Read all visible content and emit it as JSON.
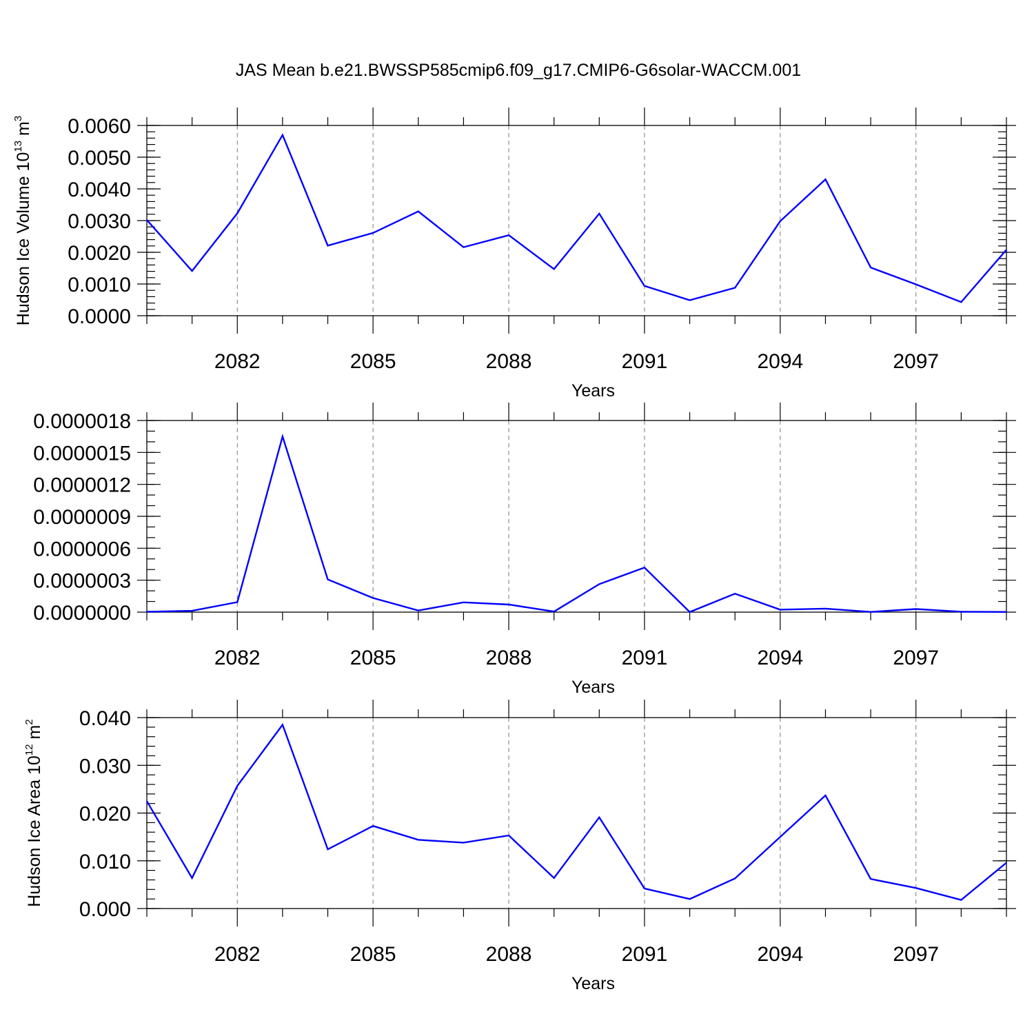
{
  "title": "JAS Mean b.e21.BWSSP585cmip6.f09_g17.CMIP6-G6solar-WACCM.001",
  "chart_data": [
    {
      "type": "line",
      "ylabel_main": "Hudson Ice Volume 10",
      "ylabel_sup": "13",
      "ylabel_unit": " m",
      "ylabel_unit_sup": "3",
      "xlabel": "Years",
      "x": [
        2080,
        2081,
        2082,
        2083,
        2084,
        2085,
        2086,
        2087,
        2088,
        2089,
        2090,
        2091,
        2092,
        2093,
        2094,
        2095,
        2096,
        2097,
        2098,
        2099
      ],
      "xlim": [
        2080,
        2099
      ],
      "xticks": [
        2082,
        2085,
        2088,
        2091,
        2094,
        2097
      ],
      "xtick_labels": [
        "2082",
        "2085",
        "2088",
        "2091",
        "2094",
        "2097"
      ],
      "ylim": [
        0,
        0.006
      ],
      "yticks": [
        0,
        0.001,
        0.002,
        0.003,
        0.004,
        0.005,
        0.006
      ],
      "ytick_labels": [
        "0.0000",
        "0.0010",
        "0.0020",
        "0.0030",
        "0.0040",
        "0.0050",
        "0.0060"
      ],
      "yminor_step": 0.0002,
      "series": [
        {
          "color": "#0000ff",
          "values": [
            0.00302,
            0.00141,
            0.00323,
            0.0057,
            0.00221,
            0.00261,
            0.00329,
            0.00216,
            0.00254,
            0.00147,
            0.00322,
            0.00094,
            0.00049,
            0.00088,
            0.00298,
            0.0043,
            0.00152,
            0.00099,
            0.00043,
            0.00208
          ]
        }
      ]
    },
    {
      "type": "line",
      "ylabel_main": "",
      "ylabel_sup": "",
      "ylabel_unit": "",
      "ylabel_unit_sup": "",
      "xlabel": "Years",
      "x": [
        2080,
        2081,
        2082,
        2083,
        2084,
        2085,
        2086,
        2087,
        2088,
        2089,
        2090,
        2091,
        2092,
        2093,
        2094,
        2095,
        2096,
        2097,
        2098,
        2099
      ],
      "xlim": [
        2080,
        2099
      ],
      "xticks": [
        2082,
        2085,
        2088,
        2091,
        2094,
        2097
      ],
      "xtick_labels": [
        "2082",
        "2085",
        "2088",
        "2091",
        "2094",
        "2097"
      ],
      "ylim": [
        0,
        1.8e-06
      ],
      "yticks": [
        0,
        3e-07,
        6e-07,
        9e-07,
        1.2e-06,
        1.5e-06,
        1.8e-06
      ],
      "ytick_labels": [
        "0.0000000",
        "0.0000003",
        "0.0000006",
        "0.0000009",
        "0.0000012",
        "0.0000015",
        "0.0000018"
      ],
      "yminor_step": 1e-07,
      "series": [
        {
          "color": "#0000ff",
          "values": [
            4e-09,
            1.2e-08,
            9.4e-08,
            1.65e-06,
            3.07e-07,
            1.33e-07,
            1.5e-08,
            9.2e-08,
            7.1e-08,
            5e-09,
            2.63e-07,
            4.18e-07,
            1e-09,
            1.73e-07,
            2.3e-08,
            3.3e-08,
            2e-09,
            2.9e-08,
            4e-09,
            2e-09
          ]
        }
      ]
    },
    {
      "type": "line",
      "ylabel_main": "Hudson Ice Area 10",
      "ylabel_sup": "12",
      "ylabel_unit": " m",
      "ylabel_unit_sup": "2",
      "xlabel": "Years",
      "x": [
        2080,
        2081,
        2082,
        2083,
        2084,
        2085,
        2086,
        2087,
        2088,
        2089,
        2090,
        2091,
        2092,
        2093,
        2094,
        2095,
        2096,
        2097,
        2098,
        2099
      ],
      "xlim": [
        2080,
        2099
      ],
      "xticks": [
        2082,
        2085,
        2088,
        2091,
        2094,
        2097
      ],
      "xtick_labels": [
        "2082",
        "2085",
        "2088",
        "2091",
        "2094",
        "2097"
      ],
      "ylim": [
        0,
        0.04
      ],
      "yticks": [
        0,
        0.01,
        0.02,
        0.03,
        0.04
      ],
      "ytick_labels": [
        "0.000",
        "0.010",
        "0.020",
        "0.030",
        "0.040"
      ],
      "yminor_step": 0.002,
      "series": [
        {
          "color": "#0000ff",
          "values": [
            0.0225,
            0.0064,
            0.0257,
            0.0385,
            0.0124,
            0.0173,
            0.0144,
            0.0138,
            0.0153,
            0.0064,
            0.0191,
            0.0042,
            0.002,
            0.0063,
            0.015,
            0.0237,
            0.0062,
            0.0043,
            0.0018,
            0.0096
          ]
        }
      ]
    }
  ]
}
